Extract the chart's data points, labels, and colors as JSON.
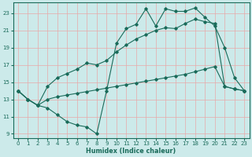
{
  "xlabel": "Humidex (Indice chaleur)",
  "bg_color": "#cceaea",
  "grid_color": "#e8a8a8",
  "line_color": "#1a6b5a",
  "xlim": [
    -0.5,
    23.5
  ],
  "ylim": [
    8.5,
    24.2
  ],
  "xticks": [
    0,
    1,
    2,
    3,
    4,
    5,
    6,
    7,
    8,
    9,
    10,
    11,
    12,
    13,
    14,
    15,
    16,
    17,
    18,
    19,
    20,
    21,
    22,
    23
  ],
  "yticks": [
    9,
    11,
    13,
    15,
    17,
    19,
    21,
    23
  ],
  "line1_x": [
    0,
    1,
    2,
    3,
    4,
    5,
    6,
    7,
    8,
    9,
    10,
    11,
    12,
    13,
    14,
    15,
    16,
    17,
    18,
    19,
    20,
    21,
    22,
    23
  ],
  "line1_y": [
    14.0,
    13.0,
    12.3,
    12.0,
    11.2,
    10.4,
    10.0,
    9.8,
    9.0,
    14.0,
    19.5,
    21.2,
    21.7,
    23.5,
    21.5,
    23.5,
    23.2,
    23.2,
    23.6,
    22.5,
    21.5,
    19.0,
    15.5,
    14.0
  ],
  "line2_x": [
    0,
    1,
    2,
    3,
    4,
    5,
    6,
    7,
    8,
    9,
    10,
    11,
    12,
    13,
    14,
    15,
    16,
    17,
    18,
    19,
    20,
    21,
    22,
    23
  ],
  "line2_y": [
    14.0,
    13.0,
    12.3,
    14.5,
    15.5,
    16.0,
    16.5,
    17.2,
    17.0,
    17.5,
    18.5,
    19.3,
    20.0,
    20.5,
    21.0,
    21.3,
    21.2,
    21.8,
    22.3,
    22.0,
    21.8,
    14.5,
    14.2,
    14.0
  ],
  "line3_x": [
    0,
    1,
    2,
    3,
    4,
    5,
    6,
    7,
    8,
    9,
    10,
    11,
    12,
    13,
    14,
    15,
    16,
    17,
    18,
    19,
    20,
    21,
    22,
    23
  ],
  "line3_y": [
    14.0,
    13.0,
    12.3,
    13.0,
    13.3,
    13.5,
    13.7,
    13.9,
    14.1,
    14.3,
    14.5,
    14.7,
    14.9,
    15.1,
    15.3,
    15.5,
    15.7,
    15.9,
    16.2,
    16.5,
    16.8,
    14.5,
    14.2,
    14.0
  ]
}
